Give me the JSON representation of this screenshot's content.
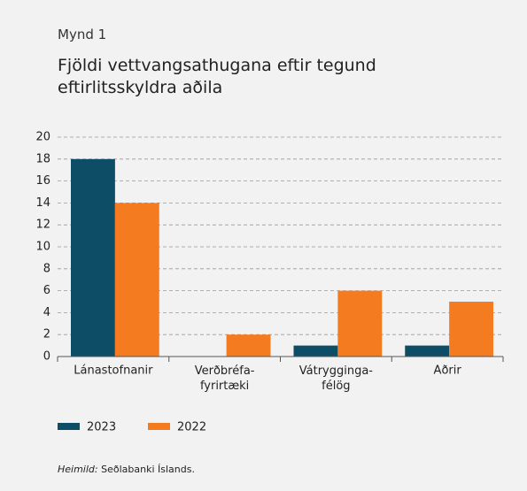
{
  "chart_data": {
    "type": "bar",
    "kicker": "Mynd 1",
    "title": "Fjöldi vettvangsathugana eftir tegund eftirlitsskyldra aðila",
    "categories": [
      "Lánastofnanir",
      "Verðbréfa-\nfyrirtæki",
      "Vátrygginga-\nfélög",
      "Aðrir"
    ],
    "series": [
      {
        "name": "2023",
        "color": "#0d4e66",
        "values": [
          18,
          0,
          1,
          1
        ]
      },
      {
        "name": "2022",
        "color": "#f47b20",
        "values": [
          14,
          2,
          6,
          5
        ]
      }
    ],
    "ylim": [
      0,
      20
    ],
    "yticks": [
      0,
      2,
      4,
      6,
      8,
      10,
      12,
      14,
      16,
      18,
      20
    ],
    "grid": true,
    "source_label": "Heimild:",
    "source": "Seðlabanki Íslands."
  }
}
